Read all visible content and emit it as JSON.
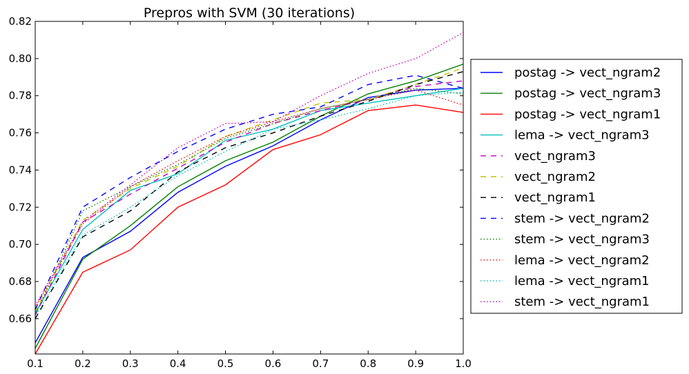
{
  "chart_data": {
    "type": "line",
    "title": "Prepros with SVM (30 iterations)",
    "xlabel": "",
    "ylabel": "",
    "xlim": [
      0.1,
      1.0
    ],
    "ylim": [
      0.641,
      0.82
    ],
    "xticks": [
      "0.1",
      "0.2",
      "0.3",
      "0.4",
      "0.5",
      "0.6",
      "0.7",
      "0.8",
      "0.9",
      "1.0"
    ],
    "yticks": [
      "0.66",
      "0.68",
      "0.70",
      "0.72",
      "0.74",
      "0.76",
      "0.78",
      "0.80",
      "0.82"
    ],
    "grid": false,
    "legend_position": "right, outside plot",
    "x": [
      0.1,
      0.2,
      0.3,
      0.4,
      0.5,
      0.6,
      0.7,
      0.8,
      0.9,
      1.0
    ],
    "series": [
      {
        "name": "postag -> vect_ngram2",
        "color": "#0000ff",
        "style": "solid",
        "values": [
          0.647,
          0.693,
          0.707,
          0.728,
          0.742,
          0.753,
          0.767,
          0.779,
          0.783,
          0.784
        ]
      },
      {
        "name": "postag -> vect_ngram3",
        "color": "#008000",
        "style": "solid",
        "values": [
          0.644,
          0.692,
          0.71,
          0.731,
          0.745,
          0.755,
          0.769,
          0.781,
          0.788,
          0.797
        ]
      },
      {
        "name": "postag -> vect_ngram1",
        "color": "#ff0000",
        "style": "solid",
        "values": [
          0.641,
          0.685,
          0.697,
          0.72,
          0.732,
          0.751,
          0.759,
          0.772,
          0.775,
          0.771
        ]
      },
      {
        "name": "lema -> vect_ngram3",
        "color": "#00bfbf",
        "style": "solid",
        "values": [
          0.663,
          0.708,
          0.729,
          0.738,
          0.756,
          0.762,
          0.772,
          0.776,
          0.78,
          0.784
        ]
      },
      {
        "name": "vect_ngram3",
        "color": "#bf00bf",
        "style": "dashed",
        "values": [
          0.662,
          0.712,
          0.727,
          0.741,
          0.755,
          0.765,
          0.772,
          0.778,
          0.785,
          0.788
        ]
      },
      {
        "name": "vect_ngram2",
        "color": "#bfbf00",
        "style": "dashed",
        "values": [
          0.664,
          0.713,
          0.73,
          0.742,
          0.758,
          0.767,
          0.776,
          0.778,
          0.786,
          0.795
        ]
      },
      {
        "name": "vect_ngram1",
        "color": "#000000",
        "style": "dashed",
        "values": [
          0.66,
          0.704,
          0.718,
          0.739,
          0.752,
          0.76,
          0.769,
          0.777,
          0.786,
          0.793
        ]
      },
      {
        "name": "stem -> vect_ngram2",
        "color": "#0000ff",
        "style": "dashed",
        "values": [
          0.665,
          0.72,
          0.736,
          0.75,
          0.762,
          0.77,
          0.774,
          0.786,
          0.791,
          0.784
        ]
      },
      {
        "name": "stem -> vect_ngram3",
        "color": "#008000",
        "style": "dotted",
        "values": [
          0.662,
          0.718,
          0.731,
          0.743,
          0.757,
          0.765,
          0.773,
          0.778,
          0.784,
          0.781
        ]
      },
      {
        "name": "lema -> vect_ngram2",
        "color": "#ff0000",
        "style": "dotted",
        "values": [
          0.666,
          0.711,
          0.731,
          0.745,
          0.758,
          0.766,
          0.773,
          0.778,
          0.783,
          0.775
        ]
      },
      {
        "name": "lema -> vect_ngram1",
        "color": "#00bfbf",
        "style": "dotted",
        "values": [
          0.661,
          0.705,
          0.72,
          0.737,
          0.75,
          0.762,
          0.767,
          0.773,
          0.78,
          0.782
        ]
      },
      {
        "name": "stem -> vect_ngram1",
        "color": "#bf00bf",
        "style": "dotted",
        "values": [
          0.667,
          0.712,
          0.732,
          0.752,
          0.765,
          0.766,
          0.78,
          0.792,
          0.8,
          0.814
        ]
      }
    ]
  }
}
